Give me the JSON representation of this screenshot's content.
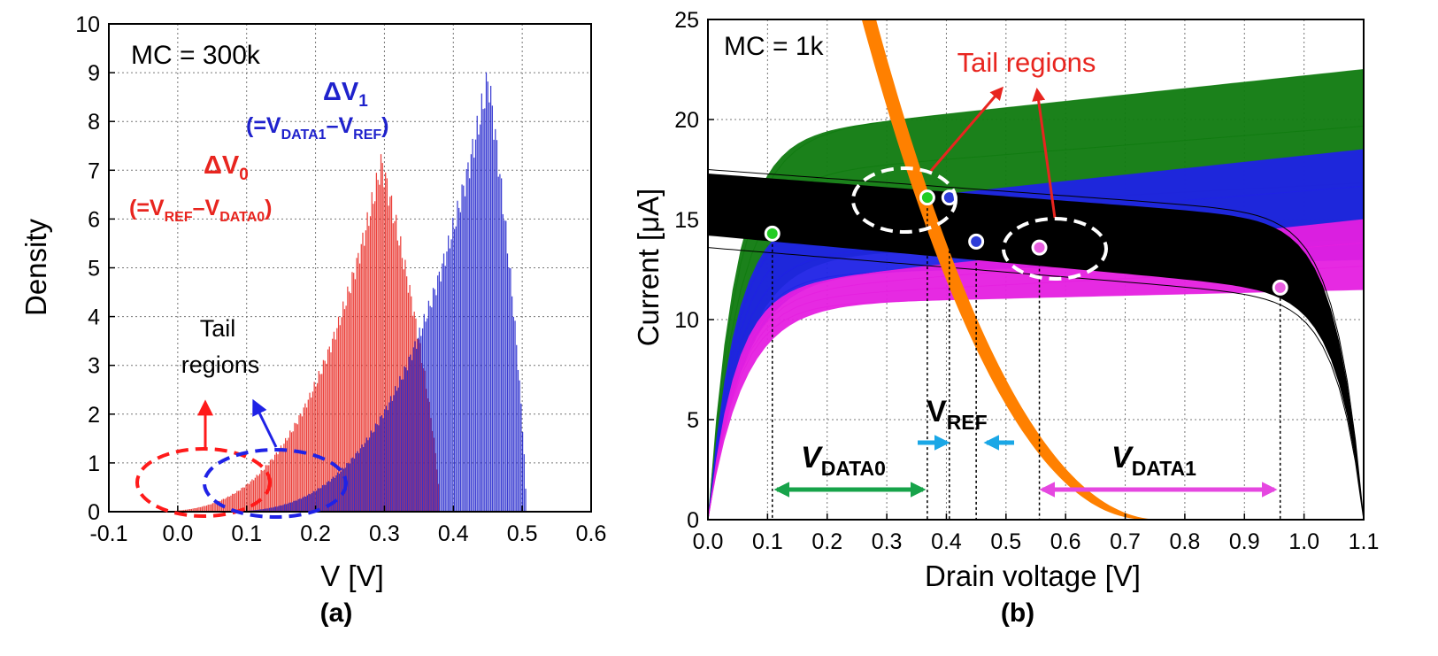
{
  "chart_data": [
    {
      "type": "bar",
      "panel_label": "(a)",
      "annotation_mc": "MC = 300k",
      "xlabel": "V [V]",
      "ylabel": "Density",
      "xlim": [
        -0.1,
        0.6
      ],
      "ylim": [
        0,
        10
      ],
      "x_ticks": [
        "-0.1",
        "0.0",
        "0.1",
        "0.2",
        "0.3",
        "0.4",
        "0.5",
        "0.6"
      ],
      "y_ticks": [
        "0",
        "1",
        "2",
        "3",
        "4",
        "5",
        "6",
        "7",
        "8",
        "9",
        "10"
      ],
      "grid": true,
      "series": [
        {
          "name_main": "ΔV",
          "name_sub": "0",
          "formula": {
            "open": "(=V",
            "sub1": "REF",
            "minus": "–V",
            "sub2": "DATA0",
            "close": ")"
          },
          "color": "#e8251f",
          "peak_x": 0.295,
          "peak_density": 7.45,
          "x_range": [
            -0.06,
            0.38
          ]
        },
        {
          "name_main": "ΔV",
          "name_sub": "1",
          "formula": {
            "open": "(=V",
            "sub1": "DATA1",
            "minus": "–V",
            "sub2": "REF",
            "close": ")"
          },
          "color": "#1f22cc",
          "peak_x": 0.45,
          "peak_density": 9.25,
          "x_range": [
            0.04,
            0.505
          ]
        }
      ],
      "tail_label": [
        "Tail",
        "regions"
      ]
    },
    {
      "type": "line",
      "panel_label": "(b)",
      "annotation_mc": "MC = 1k",
      "xlabel": "Drain voltage [V]",
      "ylabel_main": "Current [",
      "ylabel_mu": "μ",
      "ylabel_end": "A]",
      "xlim": [
        0,
        1.1
      ],
      "ylim": [
        0,
        25
      ],
      "x_ticks": [
        "0.0",
        "0.1",
        "0.2",
        "0.3",
        "0.4",
        "0.5",
        "0.6",
        "0.7",
        "0.8",
        "0.9",
        "1.0",
        "1.1"
      ],
      "y_ticks": [
        "0",
        "5",
        "10",
        "15",
        "20",
        "25"
      ],
      "grid": true,
      "tail_label": "Tail regions",
      "bands": [
        {
          "color": "#0f7a0f",
          "sat_low": 14.0,
          "sat_high": 22.5
        },
        {
          "color": "#1f22e6",
          "sat_low": 13.0,
          "sat_high": 18.5
        },
        {
          "color": "#e51fe0",
          "sat_low": 11.5,
          "sat_high": 15.0
        }
      ],
      "load_band_color": "#000000",
      "orange_band_color": "#ff8000",
      "points": [
        {
          "x": 0.108,
          "y": 14.3,
          "color": "#22cc22"
        },
        {
          "x": 0.368,
          "y": 16.1,
          "color": "#22cc22"
        },
        {
          "x": 0.405,
          "y": 16.1,
          "color": "#2b3bd8"
        },
        {
          "x": 0.45,
          "y": 13.9,
          "color": "#2b3bd8"
        },
        {
          "x": 0.556,
          "y": 13.6,
          "color": "#e85fe0"
        },
        {
          "x": 0.96,
          "y": 11.6,
          "color": "#e85fe0"
        }
      ],
      "labels": {
        "vdata0_main": "V",
        "vdata0_sub": "DATA0",
        "vref_main": "V",
        "vref_sub": "REF",
        "vdata1_main": "V",
        "vdata1_sub": "DATA1"
      },
      "arrow_colors": {
        "vdata0": "#17a34a",
        "vref": "#1aa7e6",
        "vdata1": "#e547e0"
      }
    }
  ]
}
